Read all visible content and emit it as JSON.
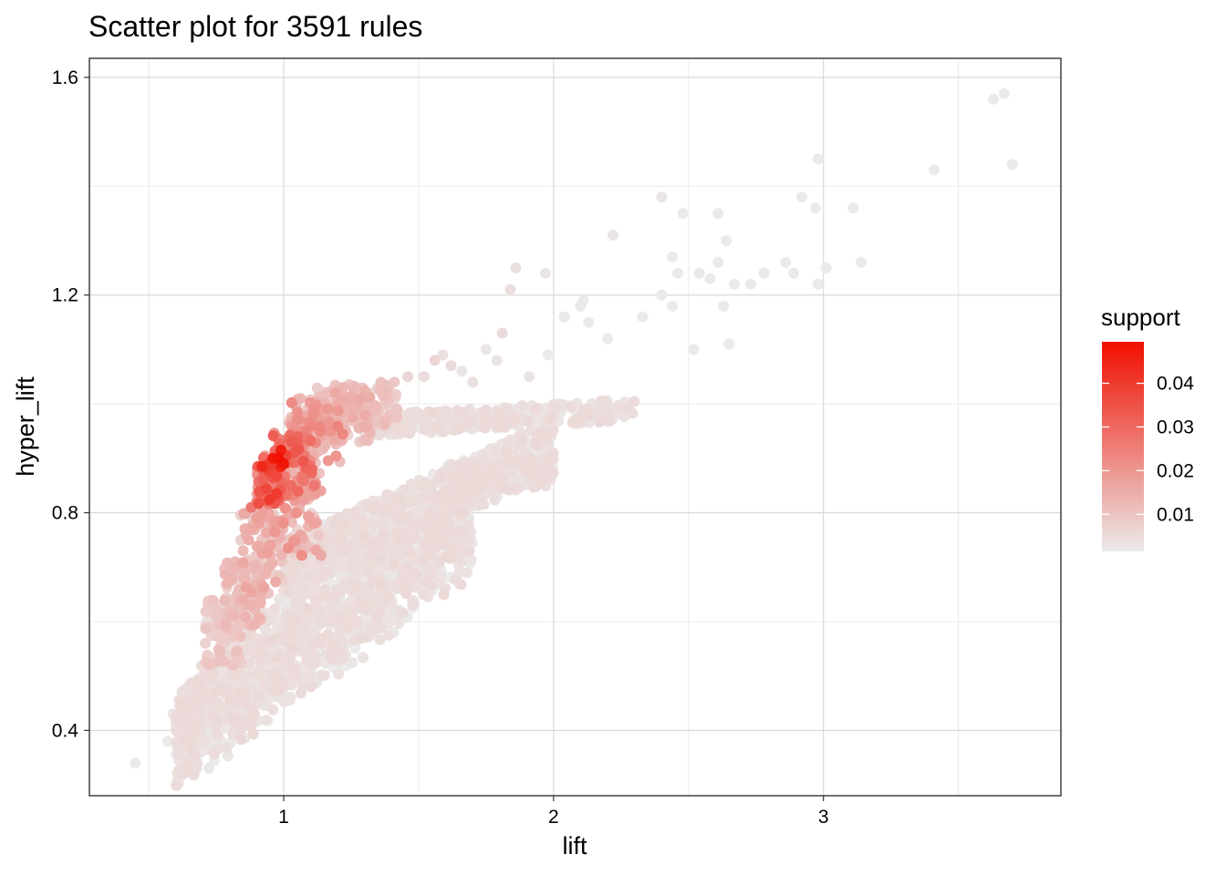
{
  "chart_data": {
    "type": "scatter",
    "title": "Scatter plot for 3591 rules",
    "xlabel": "lift",
    "ylabel": "hyper_lift",
    "xlim": [
      0.28,
      3.88
    ],
    "ylim": [
      0.28,
      1.635
    ],
    "x_ticks": [
      1,
      2,
      3
    ],
    "x_tick_labels": [
      "1",
      "2",
      "3"
    ],
    "x_minor_ticks": [
      0.5,
      1.5,
      2.5,
      3.5
    ],
    "y_ticks": [
      0.4,
      0.8,
      1.2,
      1.6
    ],
    "y_tick_labels": [
      "0.4",
      "0.8",
      "1.2",
      "1.6"
    ],
    "y_minor_ticks": [
      0.6,
      1.0,
      1.4
    ],
    "grid": true,
    "color_scale": {
      "name": "support",
      "min": 0.0015,
      "max": 0.0495,
      "low_color": "#EBEBEB",
      "high_color": "#F00F00",
      "ticks": [
        0.01,
        0.02,
        0.03,
        0.04
      ],
      "tick_labels": [
        "0.01",
        "0.02",
        "0.03",
        "0.04"
      ]
    },
    "legend_position": "right",
    "points_shown": 3591,
    "points": [
      [
        0.45,
        0.34,
        0.002
      ],
      [
        0.57,
        0.38,
        0.002
      ],
      [
        0.63,
        0.375,
        0.002
      ],
      [
        0.59,
        0.43,
        0.003
      ],
      [
        0.62,
        0.43,
        0.004
      ],
      [
        0.64,
        0.46,
        0.004
      ],
      [
        0.66,
        0.48,
        0.004
      ],
      [
        0.71,
        0.56,
        0.007
      ],
      [
        0.73,
        0.59,
        0.008
      ],
      [
        0.75,
        0.61,
        0.009
      ],
      [
        0.79,
        0.67,
        0.013
      ],
      [
        0.81,
        0.68,
        0.013
      ],
      [
        0.82,
        0.71,
        0.012
      ],
      [
        0.85,
        0.73,
        0.012
      ],
      [
        0.86,
        0.76,
        0.014
      ],
      [
        0.87,
        0.75,
        0.015
      ],
      [
        0.88,
        0.77,
        0.016
      ],
      [
        0.9,
        0.79,
        0.018
      ],
      [
        0.91,
        0.78,
        0.017
      ],
      [
        0.92,
        0.8,
        0.018
      ],
      [
        0.88,
        0.81,
        0.027
      ],
      [
        0.9,
        0.82,
        0.024
      ],
      [
        0.91,
        0.84,
        0.022
      ],
      [
        0.93,
        0.84,
        0.021
      ],
      [
        0.95,
        0.86,
        0.02
      ],
      [
        0.96,
        0.865,
        0.034
      ],
      [
        0.92,
        0.885,
        0.044
      ],
      [
        0.96,
        0.9,
        0.047
      ],
      [
        0.99,
        0.915,
        0.046
      ],
      [
        0.98,
        0.9,
        0.049
      ],
      [
        1.0,
        0.89,
        0.048
      ],
      [
        0.99,
        0.885,
        0.045
      ],
      [
        1.01,
        0.905,
        0.038
      ],
      [
        1.03,
        0.93,
        0.033
      ],
      [
        1.05,
        0.94,
        0.03
      ],
      [
        1.04,
        0.91,
        0.031
      ],
      [
        1.06,
        0.93,
        0.026
      ],
      [
        1.08,
        0.95,
        0.024
      ],
      [
        1.1,
        0.96,
        0.022
      ],
      [
        1.11,
        0.98,
        0.021
      ],
      [
        1.13,
        0.97,
        0.018
      ],
      [
        1.14,
        0.96,
        0.019
      ],
      [
        1.16,
        0.98,
        0.016
      ],
      [
        1.18,
        0.99,
        0.014
      ],
      [
        1.22,
        1.03,
        0.013
      ],
      [
        1.26,
        1.03,
        0.012
      ],
      [
        1.31,
        1.02,
        0.009
      ],
      [
        1.35,
        1.03,
        0.007
      ],
      [
        1.36,
        1.04,
        0.006
      ],
      [
        1.41,
        1.04,
        0.009
      ],
      [
        1.46,
        1.05,
        0.006
      ],
      [
        1.52,
        1.05,
        0.005
      ],
      [
        1.56,
        1.08,
        0.006
      ],
      [
        1.59,
        1.09,
        0.004
      ],
      [
        1.62,
        1.07,
        0.005
      ],
      [
        1.66,
        1.06,
        0.003
      ],
      [
        1.7,
        1.04,
        0.004
      ],
      [
        1.75,
        1.1,
        0.003
      ],
      [
        1.81,
        1.13,
        0.005
      ],
      [
        1.79,
        1.08,
        0.003
      ],
      [
        1.84,
        1.21,
        0.004
      ],
      [
        1.86,
        1.25,
        0.004
      ],
      [
        1.97,
        1.24,
        0.003
      ],
      [
        2.11,
        1.19,
        0.002
      ],
      [
        2.22,
        1.31,
        0.003
      ],
      [
        2.4,
        1.38,
        0.003
      ],
      [
        2.48,
        1.35,
        0.002
      ],
      [
        2.61,
        1.35,
        0.002
      ],
      [
        2.64,
        1.3,
        0.002
      ],
      [
        2.44,
        1.27,
        0.002
      ],
      [
        2.46,
        1.24,
        0.002
      ],
      [
        2.54,
        1.24,
        0.002
      ],
      [
        2.58,
        1.23,
        0.002
      ],
      [
        2.61,
        1.26,
        0.002
      ],
      [
        2.67,
        1.22,
        0.002
      ],
      [
        2.73,
        1.22,
        0.002
      ],
      [
        2.78,
        1.24,
        0.002
      ],
      [
        2.86,
        1.26,
        0.002
      ],
      [
        2.89,
        1.24,
        0.002
      ],
      [
        2.92,
        1.38,
        0.002
      ],
      [
        2.97,
        1.36,
        0.002
      ],
      [
        2.98,
        1.45,
        0.002
      ],
      [
        2.98,
        1.22,
        0.002
      ],
      [
        3.01,
        1.25,
        0.002
      ],
      [
        3.11,
        1.36,
        0.002
      ],
      [
        3.14,
        1.26,
        0.002
      ],
      [
        3.41,
        1.43,
        0.002
      ],
      [
        3.63,
        1.56,
        0.002
      ],
      [
        3.67,
        1.57,
        0.002
      ],
      [
        3.7,
        1.44,
        0.002
      ],
      [
        2.1,
        1.18,
        0.002
      ],
      [
        2.13,
        1.15,
        0.002
      ],
      [
        2.2,
        1.12,
        0.002
      ],
      [
        2.33,
        1.16,
        0.002
      ],
      [
        2.4,
        1.2,
        0.002
      ],
      [
        2.44,
        1.18,
        0.002
      ],
      [
        2.52,
        1.1,
        0.002
      ],
      [
        2.63,
        1.18,
        0.002
      ],
      [
        2.65,
        1.11,
        0.002
      ],
      [
        2.04,
        1.16,
        0.002
      ],
      [
        1.98,
        1.09,
        0.002
      ],
      [
        1.91,
        1.05,
        0.003
      ]
    ],
    "regions": [
      {
        "cx": 0.95,
        "cy": 0.86,
        "s0": 0.013,
        "s1": 0.041,
        "wX": 0.05,
        "wY": 0.045
      },
      {
        "cx": 1.04,
        "cy": 0.89,
        "s0": 0.01,
        "s1": 0.034,
        "wX": 0.08,
        "wY": 0.06
      },
      {
        "cx": 1.12,
        "cy": 0.95,
        "s0": 0.008,
        "s1": 0.024,
        "wX": 0.1,
        "wY": 0.06
      },
      {
        "cx": 1.04,
        "cy": 0.8,
        "s0": 0.006,
        "s1": 0.022,
        "wX": 0.1,
        "wY": 0.08
      },
      {
        "cx": 0.92,
        "cy": 0.72,
        "s0": 0.005,
        "s1": 0.017,
        "wX": 0.08,
        "wY": 0.08
      },
      {
        "cx": 0.85,
        "cy": 0.65,
        "s0": 0.004,
        "s1": 0.014,
        "wX": 0.07,
        "wY": 0.06
      },
      {
        "cx": 0.78,
        "cy": 0.58,
        "s0": 0.003,
        "s1": 0.011,
        "wX": 0.07,
        "wY": 0.06
      },
      {
        "cx": 1.22,
        "cy": 0.98,
        "s0": 0.006,
        "s1": 0.016,
        "wX": 0.1,
        "wY": 0.05
      },
      {
        "cx": 1.3,
        "cy": 1.0,
        "s0": 0.005,
        "s1": 0.012,
        "wX": 0.12,
        "wY": 0.04
      }
    ]
  }
}
